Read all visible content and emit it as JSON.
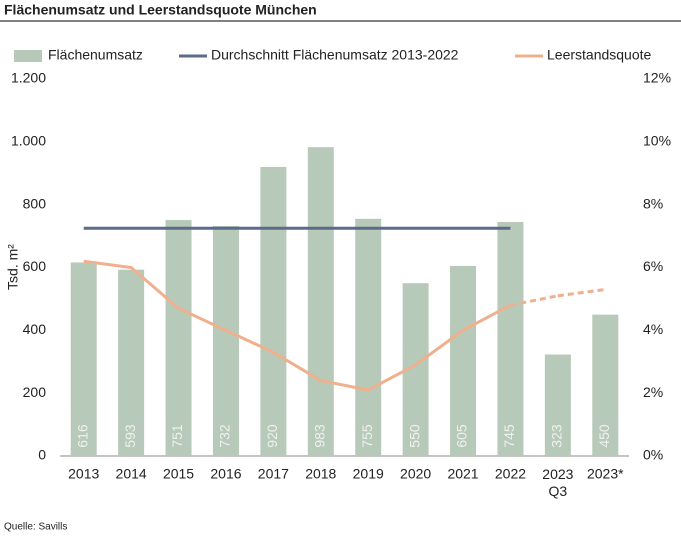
{
  "chart_data": {
    "type": "bar",
    "title": "Flächenumsatz und Leerstandsquote München",
    "y_label": "Tsd. m²",
    "source": "Quelle: Savills",
    "categories": [
      "2013",
      "2014",
      "2015",
      "2016",
      "2017",
      "2018",
      "2019",
      "2020",
      "2021",
      "2022",
      "2023\nQ3",
      "2023*"
    ],
    "series": [
      {
        "name": "Flächenumsatz",
        "type": "bar",
        "color": "#b7c9b8",
        "label_color": "#eef2ee",
        "values": [
          616,
          593,
          751,
          732,
          920,
          983,
          755,
          550,
          605,
          745,
          323,
          450
        ]
      },
      {
        "name": "Durchschnitt Flächenumsatz 2013-2022",
        "type": "line",
        "color": "#5d6b8a",
        "values": [
          725,
          725,
          725,
          725,
          725,
          725,
          725,
          725,
          725,
          725,
          null,
          null
        ]
      },
      {
        "name": "Leerstandsquote",
        "type": "line",
        "axis": "y2",
        "color": "#efb08e",
        "dashed_segments": [
          10
        ],
        "values": [
          6.2,
          6.0,
          4.7,
          4.0,
          3.3,
          2.4,
          2.1,
          2.9,
          4.0,
          4.8,
          5.1,
          5.3
        ]
      }
    ],
    "ylim": [
      0,
      1200
    ],
    "yticks": [
      0,
      200,
      400,
      600,
      800,
      {
        "value": 1000,
        "label": "1.000"
      },
      {
        "value": 1200,
        "label": "1.200"
      }
    ],
    "y2lim": [
      0,
      12
    ],
    "y2ticks": [
      {
        "value": 0,
        "label": "0%"
      },
      {
        "value": 2,
        "label": "2%"
      },
      {
        "value": 4,
        "label": "4%"
      },
      {
        "value": 6,
        "label": "6%"
      },
      {
        "value": 8,
        "label": "8%"
      },
      {
        "value": 10,
        "label": "10%"
      },
      {
        "value": 12,
        "label": "12%"
      }
    ],
    "legend": "top"
  }
}
